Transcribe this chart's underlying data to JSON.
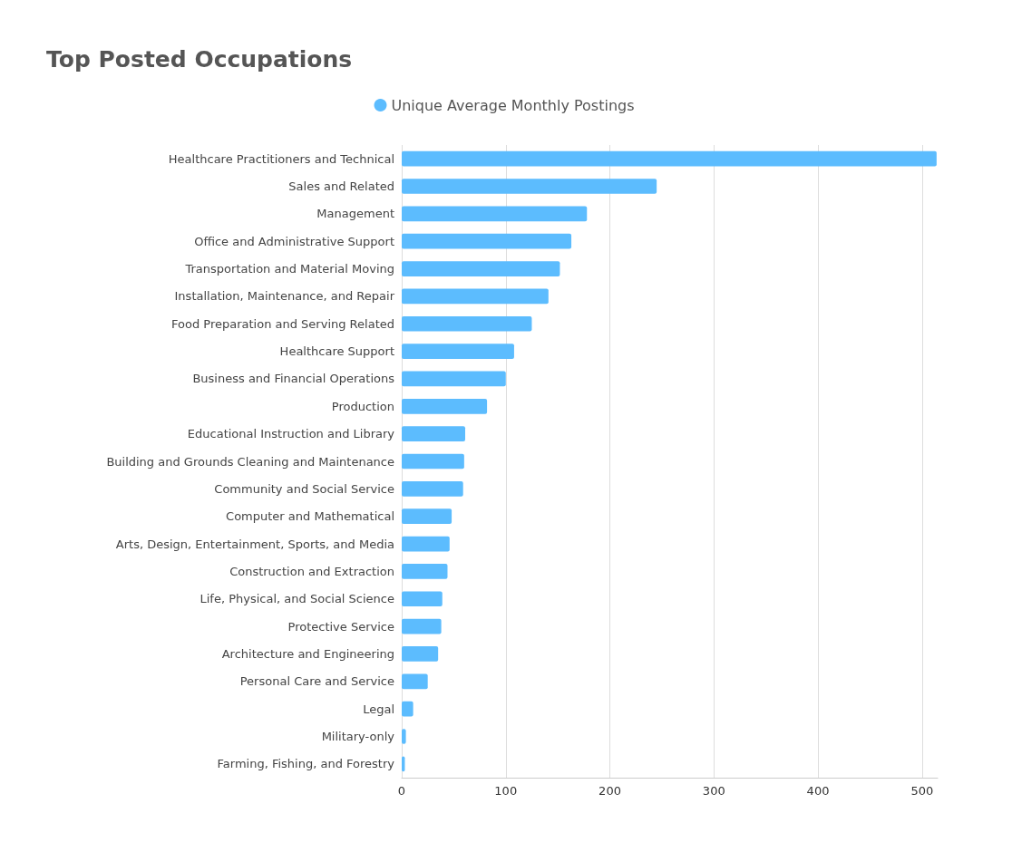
{
  "chart_data": {
    "type": "bar",
    "orientation": "horizontal",
    "title": "Top Posted Occupations",
    "categories": [
      "Healthcare Practitioners and Technical",
      "Sales and Related",
      "Management",
      "Office and Administrative Support",
      "Transportation and Material Moving",
      "Installation, Maintenance, and Repair",
      "Food Preparation and Serving Related",
      "Healthcare Support",
      "Business and Financial Operations",
      "Production",
      "Educational Instruction and Library",
      "Building and Grounds Cleaning and Maintenance",
      "Community and Social Service",
      "Computer and Mathematical",
      "Arts, Design, Entertainment, Sports, and Media",
      "Construction and Extraction",
      "Life, Physical, and Social Science",
      "Protective Service",
      "Architecture and Engineering",
      "Personal Care and Service",
      "Legal",
      "Military-only",
      "Farming, Fishing, and Forestry"
    ],
    "series": [
      {
        "name": "Unique Average Monthly Postings",
        "color": "#5cbcfe",
        "values": [
          514,
          245,
          178,
          163,
          152,
          141,
          125,
          108,
          100,
          82,
          61,
          60,
          59,
          48,
          46,
          44,
          39,
          38,
          35,
          25,
          11,
          4,
          3
        ]
      }
    ],
    "xlim": [
      0,
      515
    ],
    "xticks": [
      0,
      100,
      200,
      300,
      400,
      500
    ],
    "grid": "x",
    "legend": "top"
  }
}
